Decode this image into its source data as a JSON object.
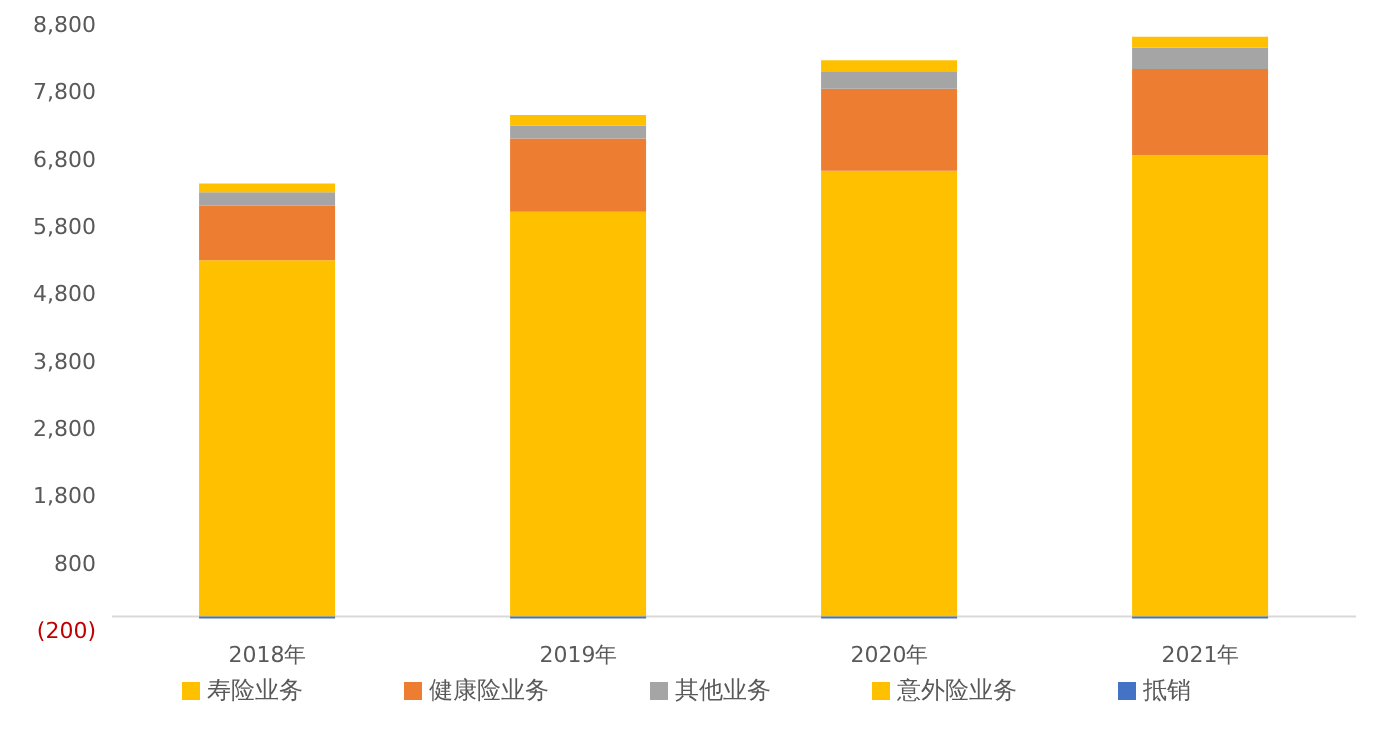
{
  "chart_data": {
    "type": "bar",
    "stacked": true,
    "categories": [
      "2018年",
      "2019年",
      "2020年",
      "2021年"
    ],
    "series": [
      {
        "name": "寿险业务",
        "color": "#ffc000",
        "values": [
          5290,
          6010,
          6620,
          6850
        ]
      },
      {
        "name": "健康险业务",
        "color": "#ed7d31",
        "values": [
          810,
          1090,
          1220,
          1280
        ]
      },
      {
        "name": "其他业务",
        "color": "#a5a5a5",
        "values": [
          200,
          190,
          260,
          320
        ]
      },
      {
        "name": "意外险业务",
        "color": "#ffc000",
        "values": [
          130,
          160,
          160,
          160
        ]
      },
      {
        "name": "抵销",
        "color": "#4472c4",
        "values": [
          -30,
          -30,
          -30,
          -30
        ]
      }
    ],
    "ylim": [
      -200,
      8800
    ],
    "yticks": [
      {
        "value": -200,
        "label": "(200)"
      },
      {
        "value": 800,
        "label": "800"
      },
      {
        "value": 1800,
        "label": "1,800"
      },
      {
        "value": 2800,
        "label": "2,800"
      },
      {
        "value": 3800,
        "label": "3,800"
      },
      {
        "value": 4800,
        "label": "4,800"
      },
      {
        "value": 5800,
        "label": "5,800"
      },
      {
        "value": 6800,
        "label": "6,800"
      },
      {
        "value": 7800,
        "label": "7,800"
      },
      {
        "value": 8800,
        "label": "8,800"
      }
    ],
    "grid": false,
    "legend": "bottom"
  }
}
